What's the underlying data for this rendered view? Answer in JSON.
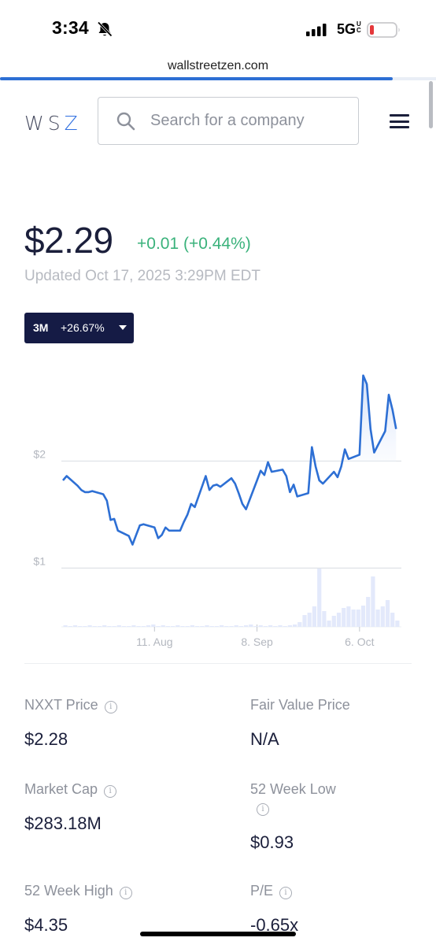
{
  "status_bar": {
    "time": "3:34",
    "network": "5G",
    "network_suffix": "UC",
    "silent_icon": "bell-slash-icon",
    "signal_icon": "cellular-signal-icon",
    "battery_icon": "battery-low-icon",
    "battery_color": "#e5383b"
  },
  "browser": {
    "url": "wallstreetzen.com",
    "load_progress": 0.9,
    "accent": "#2d6fd4"
  },
  "header": {
    "logo_text": "WS",
    "logo_accent": "Z",
    "search_placeholder": "Search for a company",
    "search_icon": "search-icon",
    "menu_icon": "hamburger-menu-icon"
  },
  "quote": {
    "price": "$2.29",
    "change": "+0.01 (+0.44%)",
    "change_color": "#3ab27b",
    "updated": "Updated Oct 17, 2025 3:29PM EDT",
    "range_period": "3M",
    "range_change": "+26.67%"
  },
  "chart_data": {
    "type": "line",
    "y_ticks": [
      "$2",
      "$1"
    ],
    "y_tick_values": [
      2,
      1
    ],
    "x_ticks": [
      "11. Aug",
      "8. Sep",
      "6. Oct"
    ],
    "x_tick_dates": [
      "2025-08-11",
      "2025-09-08",
      "2025-10-06"
    ],
    "ylim": [
      0.9,
      2.85
    ],
    "xlim": [
      "2025-07-17",
      "2025-10-17"
    ],
    "line_color": "#2d6fd4",
    "volume_color": "#e3e9fb",
    "series": [
      {
        "values": [
          [
            "2025-07-17",
            1.82
          ],
          [
            "2025-07-18",
            1.86
          ],
          [
            "2025-07-21",
            1.77
          ],
          [
            "2025-07-22",
            1.73
          ],
          [
            "2025-07-23",
            1.71
          ],
          [
            "2025-07-24",
            1.71
          ],
          [
            "2025-07-25",
            1.72
          ],
          [
            "2025-07-28",
            1.69
          ],
          [
            "2025-07-29",
            1.63
          ],
          [
            "2025-07-30",
            1.45
          ],
          [
            "2025-07-31",
            1.46
          ],
          [
            "2025-08-01",
            1.35
          ],
          [
            "2025-08-04",
            1.3
          ],
          [
            "2025-08-05",
            1.22
          ],
          [
            "2025-08-06",
            1.31
          ],
          [
            "2025-08-07",
            1.4
          ],
          [
            "2025-08-08",
            1.41
          ],
          [
            "2025-08-11",
            1.38
          ],
          [
            "2025-08-12",
            1.28
          ],
          [
            "2025-08-13",
            1.31
          ],
          [
            "2025-08-14",
            1.38
          ],
          [
            "2025-08-15",
            1.35
          ],
          [
            "2025-08-18",
            1.35
          ],
          [
            "2025-08-19",
            1.43
          ],
          [
            "2025-08-20",
            1.5
          ],
          [
            "2025-08-21",
            1.6
          ],
          [
            "2025-08-22",
            1.57
          ],
          [
            "2025-08-25",
            1.86
          ],
          [
            "2025-08-26",
            1.73
          ],
          [
            "2025-08-27",
            1.77
          ],
          [
            "2025-08-28",
            1.78
          ],
          [
            "2025-08-29",
            1.76
          ],
          [
            "2025-09-01",
            1.84
          ],
          [
            "2025-09-02",
            1.79
          ],
          [
            "2025-09-03",
            1.7
          ],
          [
            "2025-09-04",
            1.6
          ],
          [
            "2025-09-05",
            1.55
          ],
          [
            "2025-09-08",
            1.82
          ],
          [
            "2025-09-09",
            1.91
          ],
          [
            "2025-09-10",
            1.87
          ],
          [
            "2025-09-11",
            1.99
          ],
          [
            "2025-09-12",
            1.9
          ],
          [
            "2025-09-15",
            1.92
          ],
          [
            "2025-09-16",
            1.86
          ],
          [
            "2025-09-17",
            1.71
          ],
          [
            "2025-09-18",
            1.78
          ],
          [
            "2025-09-19",
            1.67
          ],
          [
            "2025-09-22",
            1.7
          ],
          [
            "2025-09-23",
            2.13
          ],
          [
            "2025-09-24",
            1.95
          ],
          [
            "2025-09-25",
            1.82
          ],
          [
            "2025-09-26",
            1.79
          ],
          [
            "2025-09-29",
            1.9
          ],
          [
            "2025-09-30",
            1.85
          ],
          [
            "2025-10-01",
            1.95
          ],
          [
            "2025-10-02",
            2.11
          ],
          [
            "2025-10-03",
            2.02
          ],
          [
            "2025-10-06",
            2.06
          ],
          [
            "2025-10-07",
            2.8
          ],
          [
            "2025-10-08",
            2.72
          ],
          [
            "2025-10-09",
            2.3
          ],
          [
            "2025-10-10",
            2.08
          ],
          [
            "2025-10-13",
            2.28
          ],
          [
            "2025-10-14",
            2.62
          ],
          [
            "2025-10-15",
            2.48
          ],
          [
            "2025-10-16",
            2.3
          ]
        ]
      }
    ]
  },
  "stats": [
    {
      "label": "NXXT Price",
      "value": "$2.28",
      "info": "i"
    },
    {
      "label": "Fair Value Price",
      "value": "N/A"
    },
    {
      "label": "Market Cap",
      "value": "$283.18M",
      "info": "i"
    },
    {
      "label": "52 Week Low",
      "value": "$0.93",
      "info": "i"
    },
    {
      "label": "52 Week High",
      "value": "$4.35",
      "info": "i"
    },
    {
      "label": "P/E",
      "value": "-0.65x",
      "info": "i"
    }
  ]
}
